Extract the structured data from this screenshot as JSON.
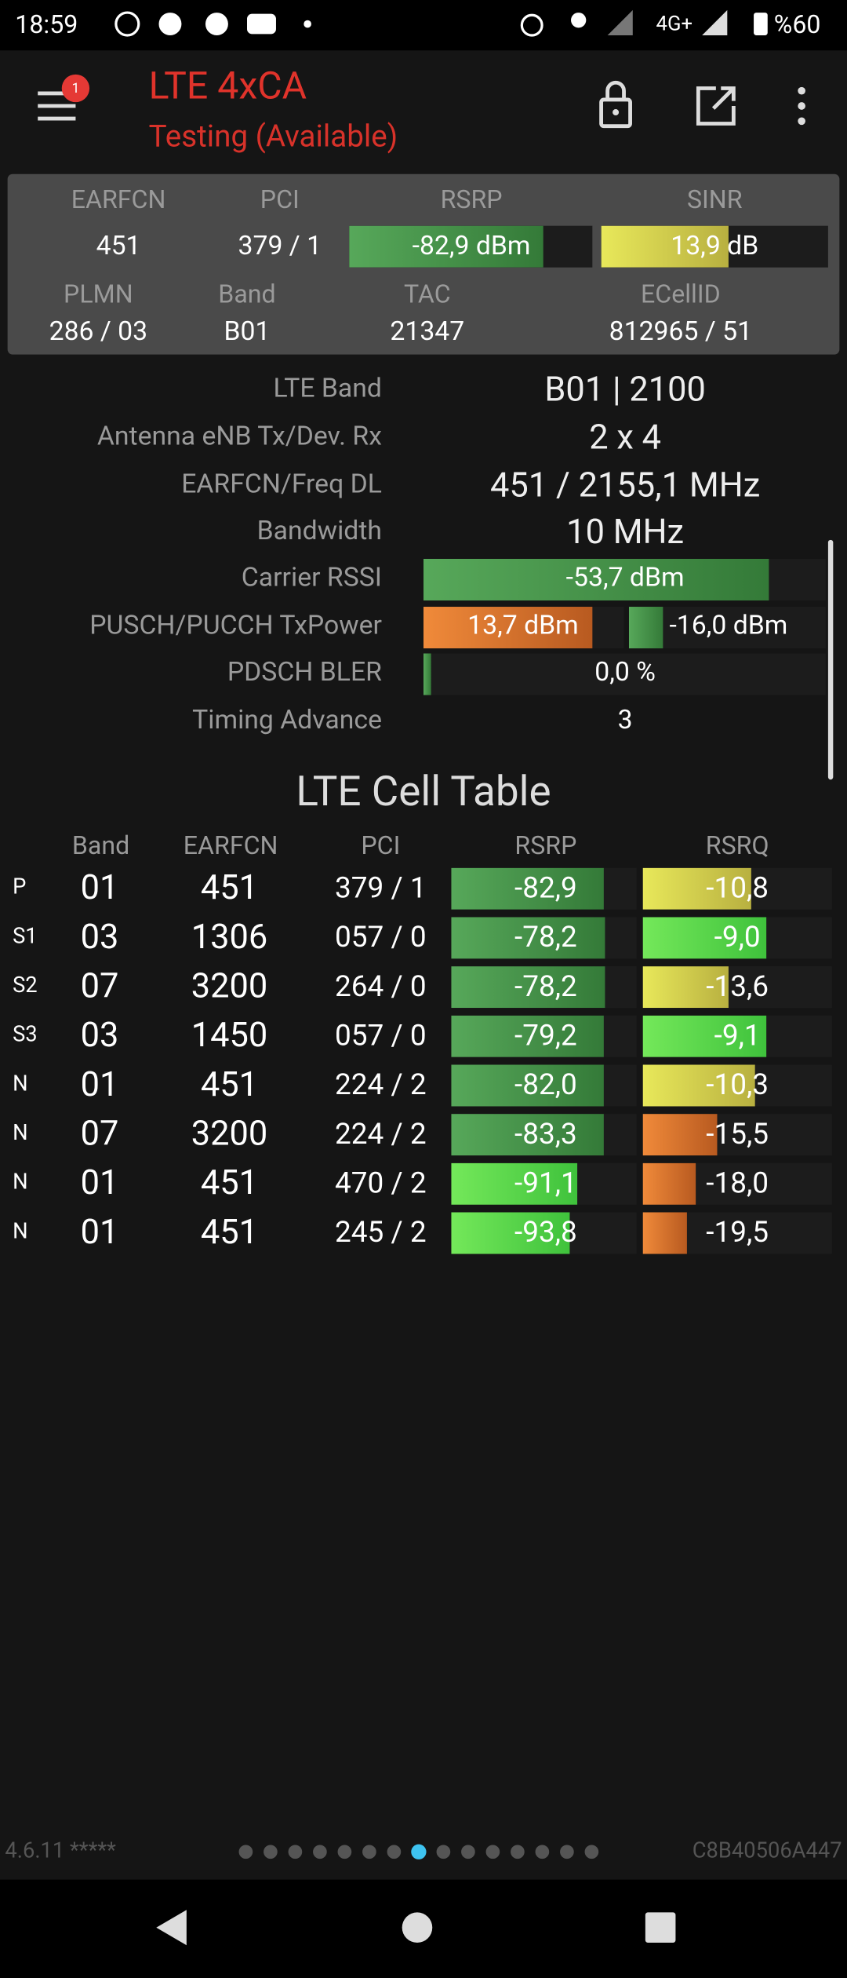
{
  "status_bar": {
    "time": "18:59",
    "network": "4G+",
    "battery": "%60"
  },
  "header": {
    "badge": "1",
    "title": "LTE 4xCA",
    "subtitle": "Testing (Available)"
  },
  "summary": {
    "labels": [
      "EARFCN",
      "PCI",
      "RSRP",
      "SINR",
      "PLMN",
      "Band",
      "TAC",
      "ECellID"
    ],
    "values": [
      "451",
      "379 / 1",
      "-82,9 dBm",
      "13,9 dB",
      "286 / 03",
      "B01",
      "21347",
      "812965 / 51"
    ]
  },
  "details": [
    {
      "label": "LTE Band",
      "value": "B01 | 2100"
    },
    {
      "label": "Antenna eNB Tx/Dev. Rx",
      "value": "2 x 4"
    },
    {
      "label": "EARFCN/Freq DL",
      "value": "451 / 2155,1 MHz"
    },
    {
      "label": "Bandwidth",
      "value": "10 MHz"
    },
    {
      "label": "Carrier RSSI",
      "value": "-53,7 dBm"
    },
    {
      "label": "PUSCH/PUCCH TxPower",
      "values": [
        "13,7 dBm",
        "-16,0 dBm"
      ]
    },
    {
      "label": "PDSCH BLER",
      "value": "0,0 %"
    },
    {
      "label": "Timing Advance",
      "value": "3"
    }
  ],
  "cell_table": {
    "title": "LTE Cell Table",
    "columns": [
      "Band",
      "EARFCN",
      "PCI",
      "RSRP",
      "RSRQ"
    ],
    "rows": [
      [
        "P",
        "01",
        "451",
        "379 / 1",
        "-82,9",
        "-10,8"
      ],
      [
        "S1",
        "03",
        "1306",
        "057 / 0",
        "-78,2",
        "-9,0"
      ],
      [
        "S2",
        "07",
        "3200",
        "264 / 0",
        "-78,2",
        "-13,6"
      ],
      [
        "S3",
        "03",
        "1450",
        "057 / 0",
        "-79,2",
        "-9,1"
      ],
      [
        "N",
        "01",
        "451",
        "224 / 2",
        "-82,0",
        "-10,3"
      ],
      [
        "N",
        "07",
        "3200",
        "224 / 2",
        "-83,3",
        "-15,5"
      ],
      [
        "N",
        "01",
        "451",
        "470 / 2",
        "-91,1",
        "-18,0"
      ],
      [
        "N",
        "01",
        "451",
        "245 / 2",
        "-93,8",
        "-19,5"
      ]
    ]
  },
  "footer": {
    "version": "4.6.11 *****",
    "device_id": "C8B40506A447"
  }
}
